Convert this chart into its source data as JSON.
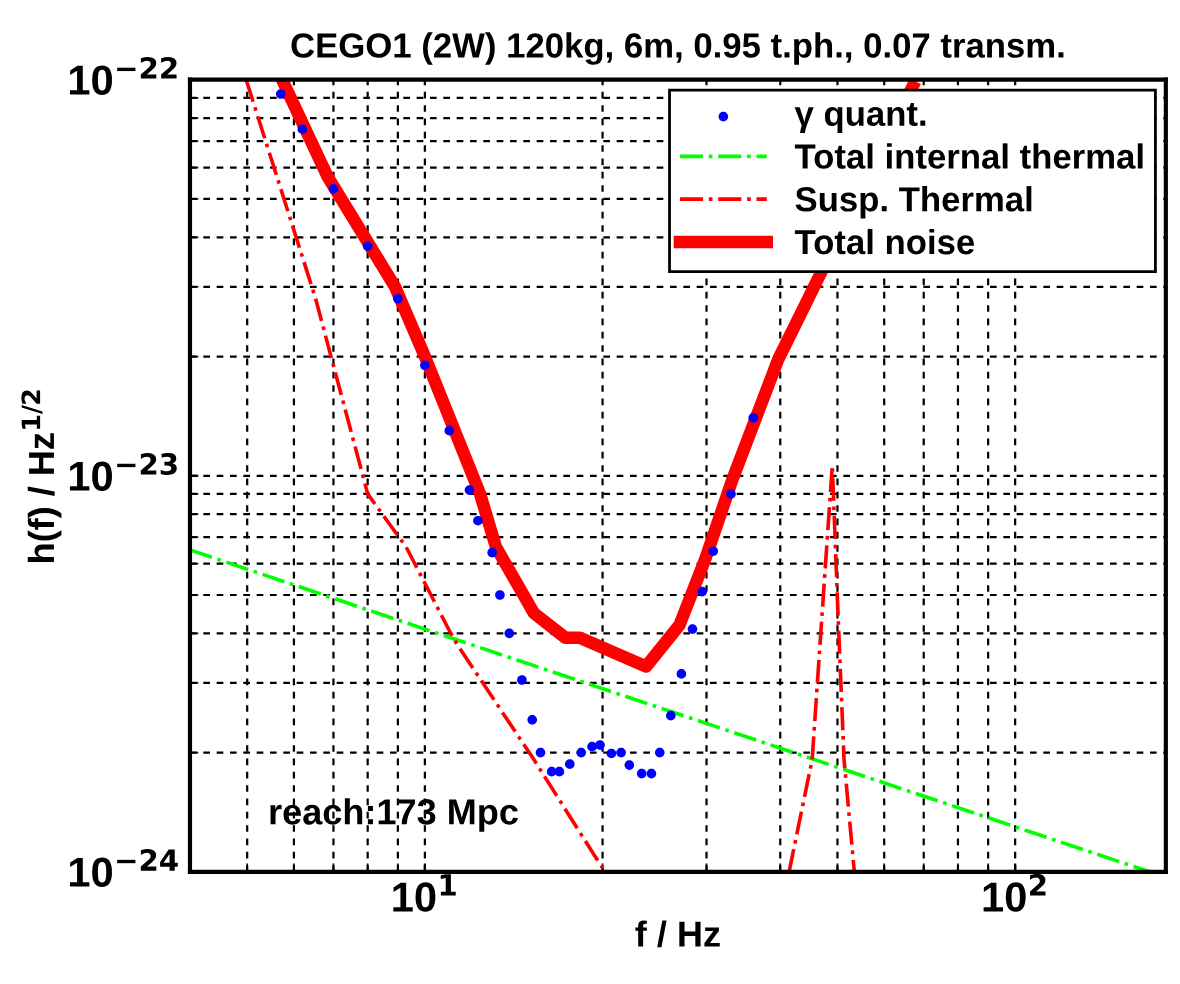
{
  "chart_data": {
    "type": "line",
    "title": "CEGO1 (2W) 120kg, 6m, 0.95 t.ph., 0.07 transm.",
    "xlabel": "f / Hz",
    "ylabel": "h(f) / Hz$^{1/2}$",
    "log": "xy",
    "grid": true,
    "legend": "top right",
    "xlim": [
      4,
      180
    ],
    "ylim": [
      1e-24,
      1e-22
    ],
    "xticks": [
      {
        "value": 10,
        "label": "10$^{1}$"
      },
      {
        "value": 100,
        "label": "10$^{2}$"
      }
    ],
    "yticks": [
      {
        "value": 1e-24,
        "label": "10$^{−24}$"
      },
      {
        "value": 1e-23,
        "label": "10$^{−23}$"
      },
      {
        "value": 1e-22,
        "label": "10$^{−22}$"
      }
    ],
    "annotations": [
      "reach:173 Mpc"
    ],
    "series": [
      {
        "name": "γ quant.",
        "type": "scatter",
        "marker": "circle",
        "color": "#0000ff",
        "x": [
          5.7,
          6.2,
          7,
          8,
          9,
          10,
          11,
          11.9,
          12.3,
          13.0,
          13.4,
          13.9,
          14.6,
          15.2,
          15.7,
          16.4,
          16.9,
          17.6,
          18.4,
          19.2,
          19.8,
          20.7,
          21.5,
          22.2,
          23.3,
          24.2,
          25.0,
          26.1,
          27.2,
          28.4,
          29.5,
          30.8,
          33,
          36
        ],
        "values": [
          9.2e-23,
          7.5e-23,
          5.3e-23,
          3.8e-23,
          2.8e-23,
          1.9e-23,
          1.3e-23,
          9.2e-24,
          7.7e-24,
          6.4e-24,
          5e-24,
          4e-24,
          3.05e-24,
          2.42e-24,
          2e-24,
          1.79e-24,
          1.79e-24,
          1.87e-24,
          2e-24,
          2.07e-24,
          2.09e-24,
          1.99e-24,
          2e-24,
          1.86e-24,
          1.77e-24,
          1.77e-24,
          2e-24,
          2.48e-24,
          3.16e-24,
          4.1e-24,
          5.1e-24,
          6.45e-24,
          9e-24,
          1.4e-23
        ]
      },
      {
        "name": "Total internal thermal",
        "line_style": "dashdot",
        "color": "#00ff00",
        "x": [
          4,
          10,
          169
        ],
        "values": [
          6.5e-24,
          4.1e-24,
          1e-24
        ]
      },
      {
        "name": "Susp. Thermal",
        "line_style": "dashdot",
        "color": "#ff0000",
        "x": [
          4.98,
          6.53,
          8.0,
          9.3,
          11.2,
          15.3,
          19.3,
          20.2,
          30,
          41.4,
          45.3,
          47.1,
          49.0,
          50.1,
          51.3,
          53.4
        ],
        "values": [
          1e-22,
          2.8e-23,
          9e-24,
          6.6e-24,
          3.86e-24,
          1.92e-24,
          1.11e-24,
          1e-24,
          null,
          1e-24,
          1.92e-24,
          4.5e-24,
          1.06e-23,
          4.5e-24,
          1.92e-24,
          1e-24
        ]
      },
      {
        "name": "Total noise",
        "line_style": "solid",
        "color": "#ff0000",
        "x": [
          5.73,
          6.84,
          8.9,
          10,
          12.4,
          13.2,
          15.3,
          17.3,
          18.3,
          23.7,
          27.0,
          29.9,
          33.2,
          39.7,
          44.6,
          67
        ],
        "values": [
          1e-22,
          5.7e-23,
          3e-23,
          2e-23,
          9e-24,
          6.6e-24,
          4.5e-24,
          3.9e-24,
          3.9e-24,
          3.3e-24,
          4.2e-24,
          6.2e-24,
          9.8e-24,
          1.97e-23,
          2.8e-23,
          9.6e-23
        ]
      }
    ]
  }
}
